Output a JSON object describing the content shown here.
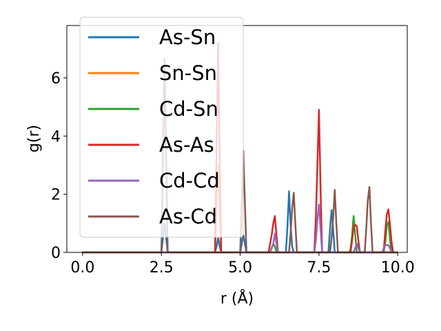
{
  "chart_data": {
    "type": "line",
    "title": "",
    "xlabel": "r (Å)",
    "ylabel": "g(r)",
    "xlim": [
      -0.5,
      10.3
    ],
    "ylim": [
      0,
      7.8
    ],
    "xticks": [
      0.0,
      2.5,
      5.0,
      7.5,
      10.0
    ],
    "xtick_labels": [
      "0.0",
      "2.5",
      "5.0",
      "7.5",
      "10.0"
    ],
    "yticks": [
      0,
      2,
      4,
      6
    ],
    "ytick_labels": [
      "0",
      "2",
      "4",
      "6"
    ],
    "grid": false,
    "legend_position": "upper-left",
    "series": [
      {
        "name": "As-Sn",
        "color": "#1f77b4",
        "x": [
          0,
          2.5,
          2.55,
          2.6,
          2.65,
          2.7,
          4.2,
          4.25,
          4.3,
          4.35,
          4.4,
          5.0,
          5.05,
          5.1,
          5.15,
          5.2,
          6.45,
          6.5,
          6.55,
          6.6,
          6.65,
          6.7,
          7.8,
          7.85,
          7.9,
          7.95,
          8.0,
          9.98
        ],
        "y": [
          0,
          0,
          0.5,
          1.0,
          0.5,
          0,
          0,
          0.2,
          0.5,
          0.2,
          0,
          0,
          0.3,
          0.6,
          0.3,
          0,
          0,
          0.9,
          2.1,
          0.9,
          0.2,
          0,
          0,
          0.8,
          1.45,
          0.8,
          0,
          0
        ]
      },
      {
        "name": "Sn-Sn",
        "color": "#ff7f0e",
        "x": [
          0,
          4.2,
          4.25,
          4.3,
          4.35,
          4.4,
          9.98
        ],
        "y": [
          0,
          0,
          1.5,
          3.0,
          1.5,
          0,
          0
        ]
      },
      {
        "name": "Cd-Sn",
        "color": "#2ca02c",
        "x": [
          0,
          5.95,
          6.05,
          6.1,
          6.15,
          6.2,
          8.45,
          8.5,
          8.55,
          8.6,
          8.65,
          8.7,
          9.55,
          9.6,
          9.65,
          9.7,
          9.75,
          9.8,
          9.98
        ],
        "y": [
          0,
          0,
          0.3,
          0.2,
          0.05,
          0,
          0,
          0.1,
          0.6,
          1.25,
          0.6,
          0,
          0,
          0.3,
          0.9,
          1.05,
          0.5,
          0,
          0
        ]
      },
      {
        "name": "As-As",
        "color": "#d62728",
        "x": [
          0,
          4.2,
          4.25,
          4.3,
          4.35,
          4.4,
          5.9,
          6.0,
          6.05,
          6.1,
          6.15,
          6.2,
          7.35,
          7.4,
          7.45,
          7.5,
          7.55,
          7.6,
          8.5,
          8.55,
          8.6,
          8.65,
          8.7,
          8.75,
          8.8,
          9.55,
          9.6,
          9.65,
          9.7,
          9.75,
          9.8,
          9.85,
          9.98
        ],
        "y": [
          0,
          0,
          3.5,
          7.2,
          3.5,
          0,
          0,
          0.6,
          1.0,
          1.25,
          0.6,
          0,
          0,
          1.2,
          3.0,
          4.9,
          2.2,
          0,
          0,
          0.4,
          0.9,
          0.95,
          0.9,
          0.4,
          0,
          0,
          0.7,
          1.3,
          1.48,
          1.0,
          0.4,
          0,
          0
        ]
      },
      {
        "name": "Cd-Cd",
        "color": "#9467bd",
        "x": [
          0,
          5.95,
          6.05,
          6.1,
          6.15,
          6.2,
          7.35,
          7.4,
          7.45,
          7.5,
          7.55,
          7.6,
          8.6,
          8.65,
          8.7,
          8.75,
          8.8,
          9.5,
          9.6,
          9.7,
          9.75,
          9.8,
          9.98
        ],
        "y": [
          0,
          0,
          0.3,
          0.65,
          0.3,
          0,
          0,
          0.4,
          1.1,
          1.65,
          0.8,
          0,
          0,
          0.15,
          0.3,
          0.15,
          0,
          0,
          0.25,
          0.25,
          0.15,
          0,
          0
        ]
      },
      {
        "name": "As-Cd",
        "color": "#8c564b",
        "x": [
          0,
          2.5,
          2.55,
          2.6,
          2.65,
          2.7,
          5.0,
          5.05,
          5.1,
          5.15,
          5.2,
          6.55,
          6.6,
          6.65,
          6.7,
          6.75,
          6.8,
          7.85,
          7.9,
          7.95,
          8.0,
          8.05,
          8.1,
          8.95,
          9.0,
          9.05,
          9.1,
          9.15,
          9.2,
          9.98
        ],
        "y": [
          0,
          0,
          3.3,
          6.65,
          3.3,
          0,
          0,
          1.7,
          3.5,
          1.7,
          0,
          0,
          0.7,
          1.5,
          2.05,
          1.0,
          0,
          0,
          0.5,
          1.2,
          2.15,
          1.0,
          0,
          0,
          0.8,
          1.8,
          2.25,
          1.0,
          0,
          0
        ]
      }
    ]
  }
}
